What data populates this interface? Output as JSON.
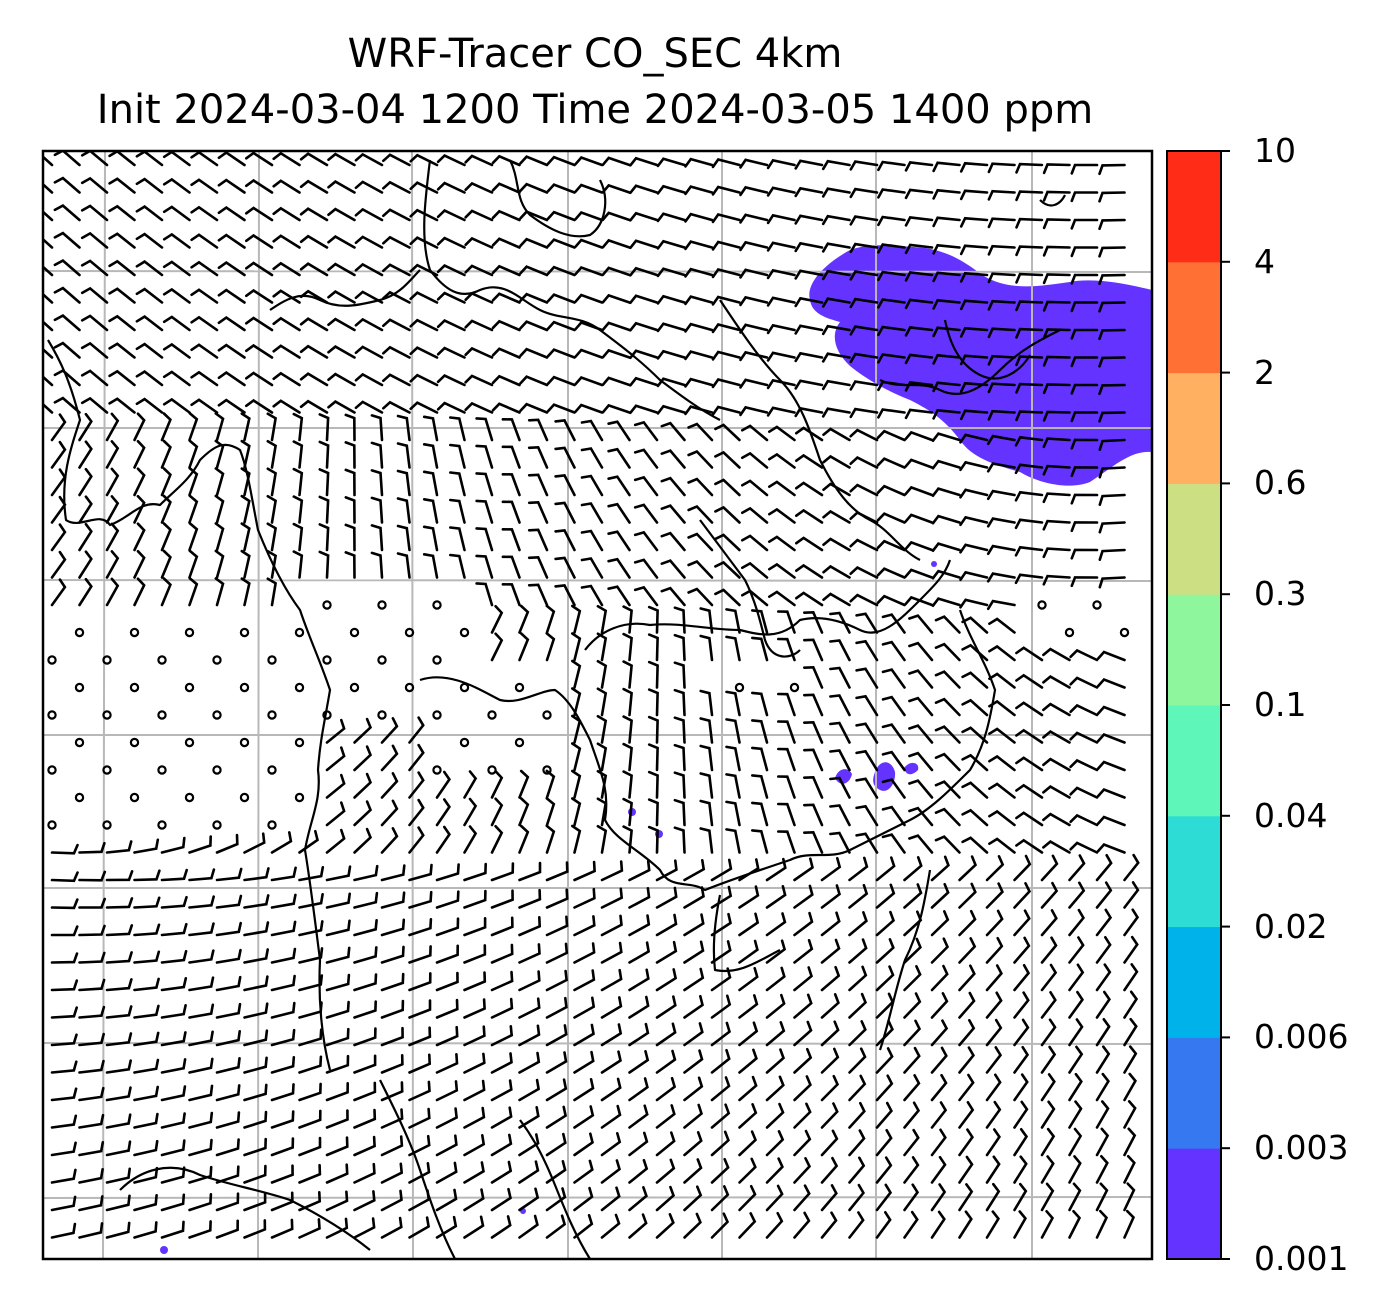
{
  "title": {
    "line1": "WRF-Tracer CO_SEC 4km",
    "line2": "Init 2024-03-04 1200 Time 2024-03-05 1400 ppm"
  },
  "colorbar": {
    "levels": [
      "0.001",
      "0.003",
      "0.006",
      "0.02",
      "0.04",
      "0.1",
      "0.3",
      "0.6",
      "2",
      "4",
      "10"
    ],
    "colors": [
      "#6433ff",
      "#3578f0",
      "#00b2ea",
      "#2ddcd4",
      "#5ff7b9",
      "#8ef79d",
      "#ccdf82",
      "#ffb060",
      "#ff7035",
      "#ff2d18"
    ]
  },
  "map": {
    "grid_lines": true,
    "grid_color": "#b8b8b8",
    "tracer_color": "#6433ff"
  }
}
